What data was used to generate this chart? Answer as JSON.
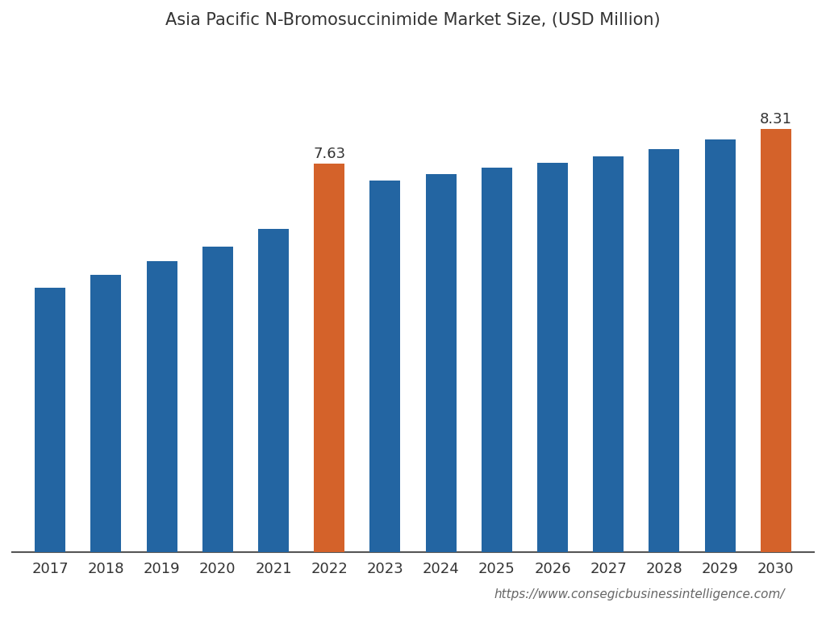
{
  "title": "Asia Pacific N-Bromosuccinimide Market Size, (USD Million)",
  "years": [
    2017,
    2018,
    2019,
    2020,
    2021,
    2022,
    2023,
    2024,
    2025,
    2026,
    2027,
    2028,
    2029,
    2030
  ],
  "values": [
    5.2,
    5.45,
    5.72,
    6.0,
    6.35,
    7.63,
    7.3,
    7.43,
    7.55,
    7.65,
    7.77,
    7.91,
    8.1,
    8.31
  ],
  "bar_colors": [
    "#2365a2",
    "#2365a2",
    "#2365a2",
    "#2365a2",
    "#2365a2",
    "#d4622a",
    "#2365a2",
    "#2365a2",
    "#2365a2",
    "#2365a2",
    "#2365a2",
    "#2365a2",
    "#2365a2",
    "#d4622a"
  ],
  "labeled_bars": [
    5,
    13
  ],
  "labels": [
    "7.63",
    "8.31"
  ],
  "background_color": "#ffffff",
  "axis_color": "#333333",
  "url_text": "https://www.consegicbusinessintelligence.com/",
  "title_fontsize": 15,
  "label_fontsize": 13,
  "tick_fontsize": 13,
  "url_fontsize": 11,
  "bar_width": 0.55,
  "ylim_max": 9.8
}
